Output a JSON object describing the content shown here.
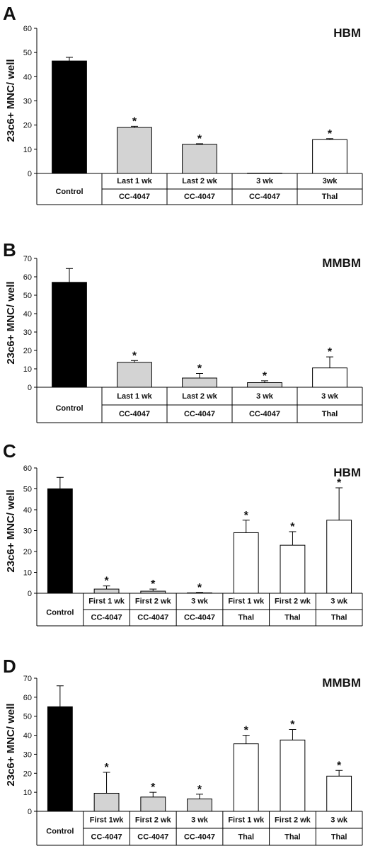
{
  "chart_data": [
    {
      "type": "bar",
      "panel": "A",
      "title": "HBM",
      "ylabel": "23c6+ MNC/ well",
      "ylim": [
        0,
        60
      ],
      "yticks": [
        0,
        10,
        20,
        30,
        40,
        50,
        60
      ],
      "categories": [
        "Control",
        "Last 1 wk",
        "Last 2 wk",
        "3 wk",
        "3wk"
      ],
      "groups": [
        "Control",
        "CC-4047",
        "CC-4047",
        "CC-4047",
        "Thal"
      ],
      "values": [
        46.5,
        19,
        12,
        0,
        14
      ],
      "errors": [
        1.5,
        0.5,
        0.3,
        0,
        0.4
      ],
      "significant": [
        false,
        true,
        true,
        false,
        true
      ],
      "colors": [
        "#000000",
        "#d3d3d3",
        "#d3d3d3",
        "#d3d3d3",
        "#ffffff"
      ]
    },
    {
      "type": "bar",
      "panel": "B",
      "title": "MMBM",
      "ylabel": "23c6+ MNC/ well",
      "ylim": [
        0,
        70
      ],
      "yticks": [
        0,
        10,
        20,
        30,
        40,
        50,
        60,
        70
      ],
      "categories": [
        "Control",
        "Last 1 wk",
        "Last 2 wk",
        "3 wk",
        "3 wk"
      ],
      "groups": [
        "Control",
        "CC-4047",
        "CC-4047",
        "CC-4047",
        "Thal"
      ],
      "values": [
        57,
        13.5,
        5,
        2.5,
        10.5
      ],
      "errors": [
        7.5,
        1,
        2.5,
        1,
        6
      ],
      "significant": [
        false,
        true,
        true,
        true,
        true
      ],
      "colors": [
        "#000000",
        "#d3d3d3",
        "#d3d3d3",
        "#d3d3d3",
        "#ffffff"
      ]
    },
    {
      "type": "bar",
      "panel": "C",
      "title": "HBM",
      "ylabel": "23c6+ MNC/ well",
      "ylim": [
        0,
        60
      ],
      "yticks": [
        0,
        10,
        20,
        30,
        40,
        50,
        60
      ],
      "categories": [
        "Control",
        "First 1 wk",
        "First 2 wk",
        "3 wk",
        "First 1 wk",
        "First 2 wk",
        "3 wk"
      ],
      "groups": [
        "Control",
        "CC-4047",
        "CC-4047",
        "CC-4047",
        "Thal",
        "Thal",
        "Thal"
      ],
      "values": [
        50,
        2,
        1,
        0.2,
        29,
        23,
        35
      ],
      "errors": [
        5.5,
        1.5,
        1,
        0.2,
        6,
        6.5,
        15.5
      ],
      "significant": [
        false,
        true,
        true,
        true,
        true,
        true,
        true
      ],
      "colors": [
        "#000000",
        "#d3d3d3",
        "#d3d3d3",
        "#d3d3d3",
        "#ffffff",
        "#ffffff",
        "#ffffff"
      ]
    },
    {
      "type": "bar",
      "panel": "D",
      "title": "MMBM",
      "ylabel": "23c6+ MNC/ well",
      "ylim": [
        0,
        70
      ],
      "yticks": [
        0,
        10,
        20,
        30,
        40,
        50,
        60,
        70
      ],
      "categories": [
        "Control",
        "First 1wk",
        "First 2 wk",
        "3 wk",
        "First 1 wk",
        "First 2 wk",
        "3 wk"
      ],
      "groups": [
        "Control",
        "CC-4047",
        "CC-4047",
        "CC-4047",
        "Thal",
        "Thal",
        "Thal"
      ],
      "values": [
        55,
        9.5,
        7.5,
        6.5,
        35.5,
        37.5,
        18.5
      ],
      "errors": [
        11,
        11,
        2.5,
        2.5,
        4.5,
        5.5,
        3
      ],
      "significant": [
        false,
        true,
        true,
        true,
        true,
        true,
        true
      ],
      "colors": [
        "#000000",
        "#d3d3d3",
        "#d3d3d3",
        "#d3d3d3",
        "#ffffff",
        "#ffffff",
        "#ffffff"
      ]
    }
  ]
}
